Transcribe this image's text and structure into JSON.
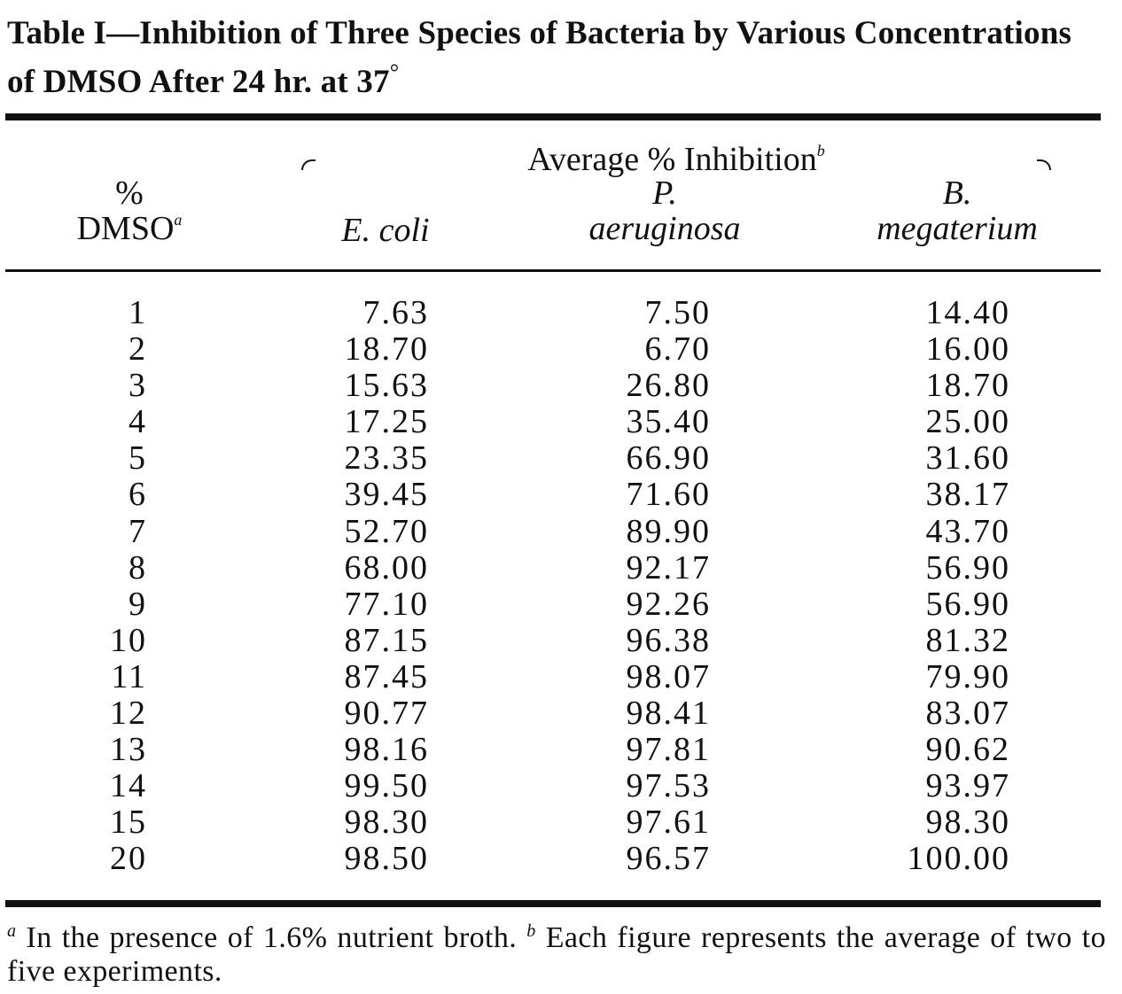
{
  "caption": {
    "text": "Table I—Inhibition of Three Species of Bacteria by Various Concentrations of DMSO After 24 hr. at 37",
    "degree": "°"
  },
  "header": {
    "span_label": "Average % Inhibition",
    "span_footnote": "b",
    "dmso_line1": "%",
    "dmso_line2": "DMSO",
    "dmso_footnote": "a",
    "col_ecoli": "E. coli",
    "col_paer_1": "P.",
    "col_paer_2": "aeruginosa",
    "col_bmeg_1": "B.",
    "col_bmeg_2": "megaterium"
  },
  "rows": [
    {
      "dmso": "1",
      "ecoli": "7.63",
      "paer": "7.50",
      "bmeg": "14.40"
    },
    {
      "dmso": "2",
      "ecoli": "18.70",
      "paer": "6.70",
      "bmeg": "16.00"
    },
    {
      "dmso": "3",
      "ecoli": "15.63",
      "paer": "26.80",
      "bmeg": "18.70"
    },
    {
      "dmso": "4",
      "ecoli": "17.25",
      "paer": "35.40",
      "bmeg": "25.00"
    },
    {
      "dmso": "5",
      "ecoli": "23.35",
      "paer": "66.90",
      "bmeg": "31.60"
    },
    {
      "dmso": "6",
      "ecoli": "39.45",
      "paer": "71.60",
      "bmeg": "38.17"
    },
    {
      "dmso": "7",
      "ecoli": "52.70",
      "paer": "89.90",
      "bmeg": "43.70"
    },
    {
      "dmso": "8",
      "ecoli": "68.00",
      "paer": "92.17",
      "bmeg": "56.90"
    },
    {
      "dmso": "9",
      "ecoli": "77.10",
      "paer": "92.26",
      "bmeg": "56.90"
    },
    {
      "dmso": "10",
      "ecoli": "87.15",
      "paer": "96.38",
      "bmeg": "81.32"
    },
    {
      "dmso": "11",
      "ecoli": "87.45",
      "paer": "98.07",
      "bmeg": "79.90"
    },
    {
      "dmso": "12",
      "ecoli": "90.77",
      "paer": "98.41",
      "bmeg": "83.07"
    },
    {
      "dmso": "13",
      "ecoli": "98.16",
      "paer": "97.81",
      "bmeg": "90.62"
    },
    {
      "dmso": "14",
      "ecoli": "99.50",
      "paer": "97.53",
      "bmeg": "93.97"
    },
    {
      "dmso": "15",
      "ecoli": "98.30",
      "paer": "97.61",
      "bmeg": "98.30"
    },
    {
      "dmso": "20",
      "ecoli": "98.50",
      "paer": "96.57",
      "bmeg": "100.00"
    }
  ],
  "footnotes": {
    "a_marker": "a",
    "a_text": "In the presence of 1.6% nutrient broth.",
    "b_marker": "b",
    "b_text": "Each figure represents the average of two to five experiments."
  }
}
